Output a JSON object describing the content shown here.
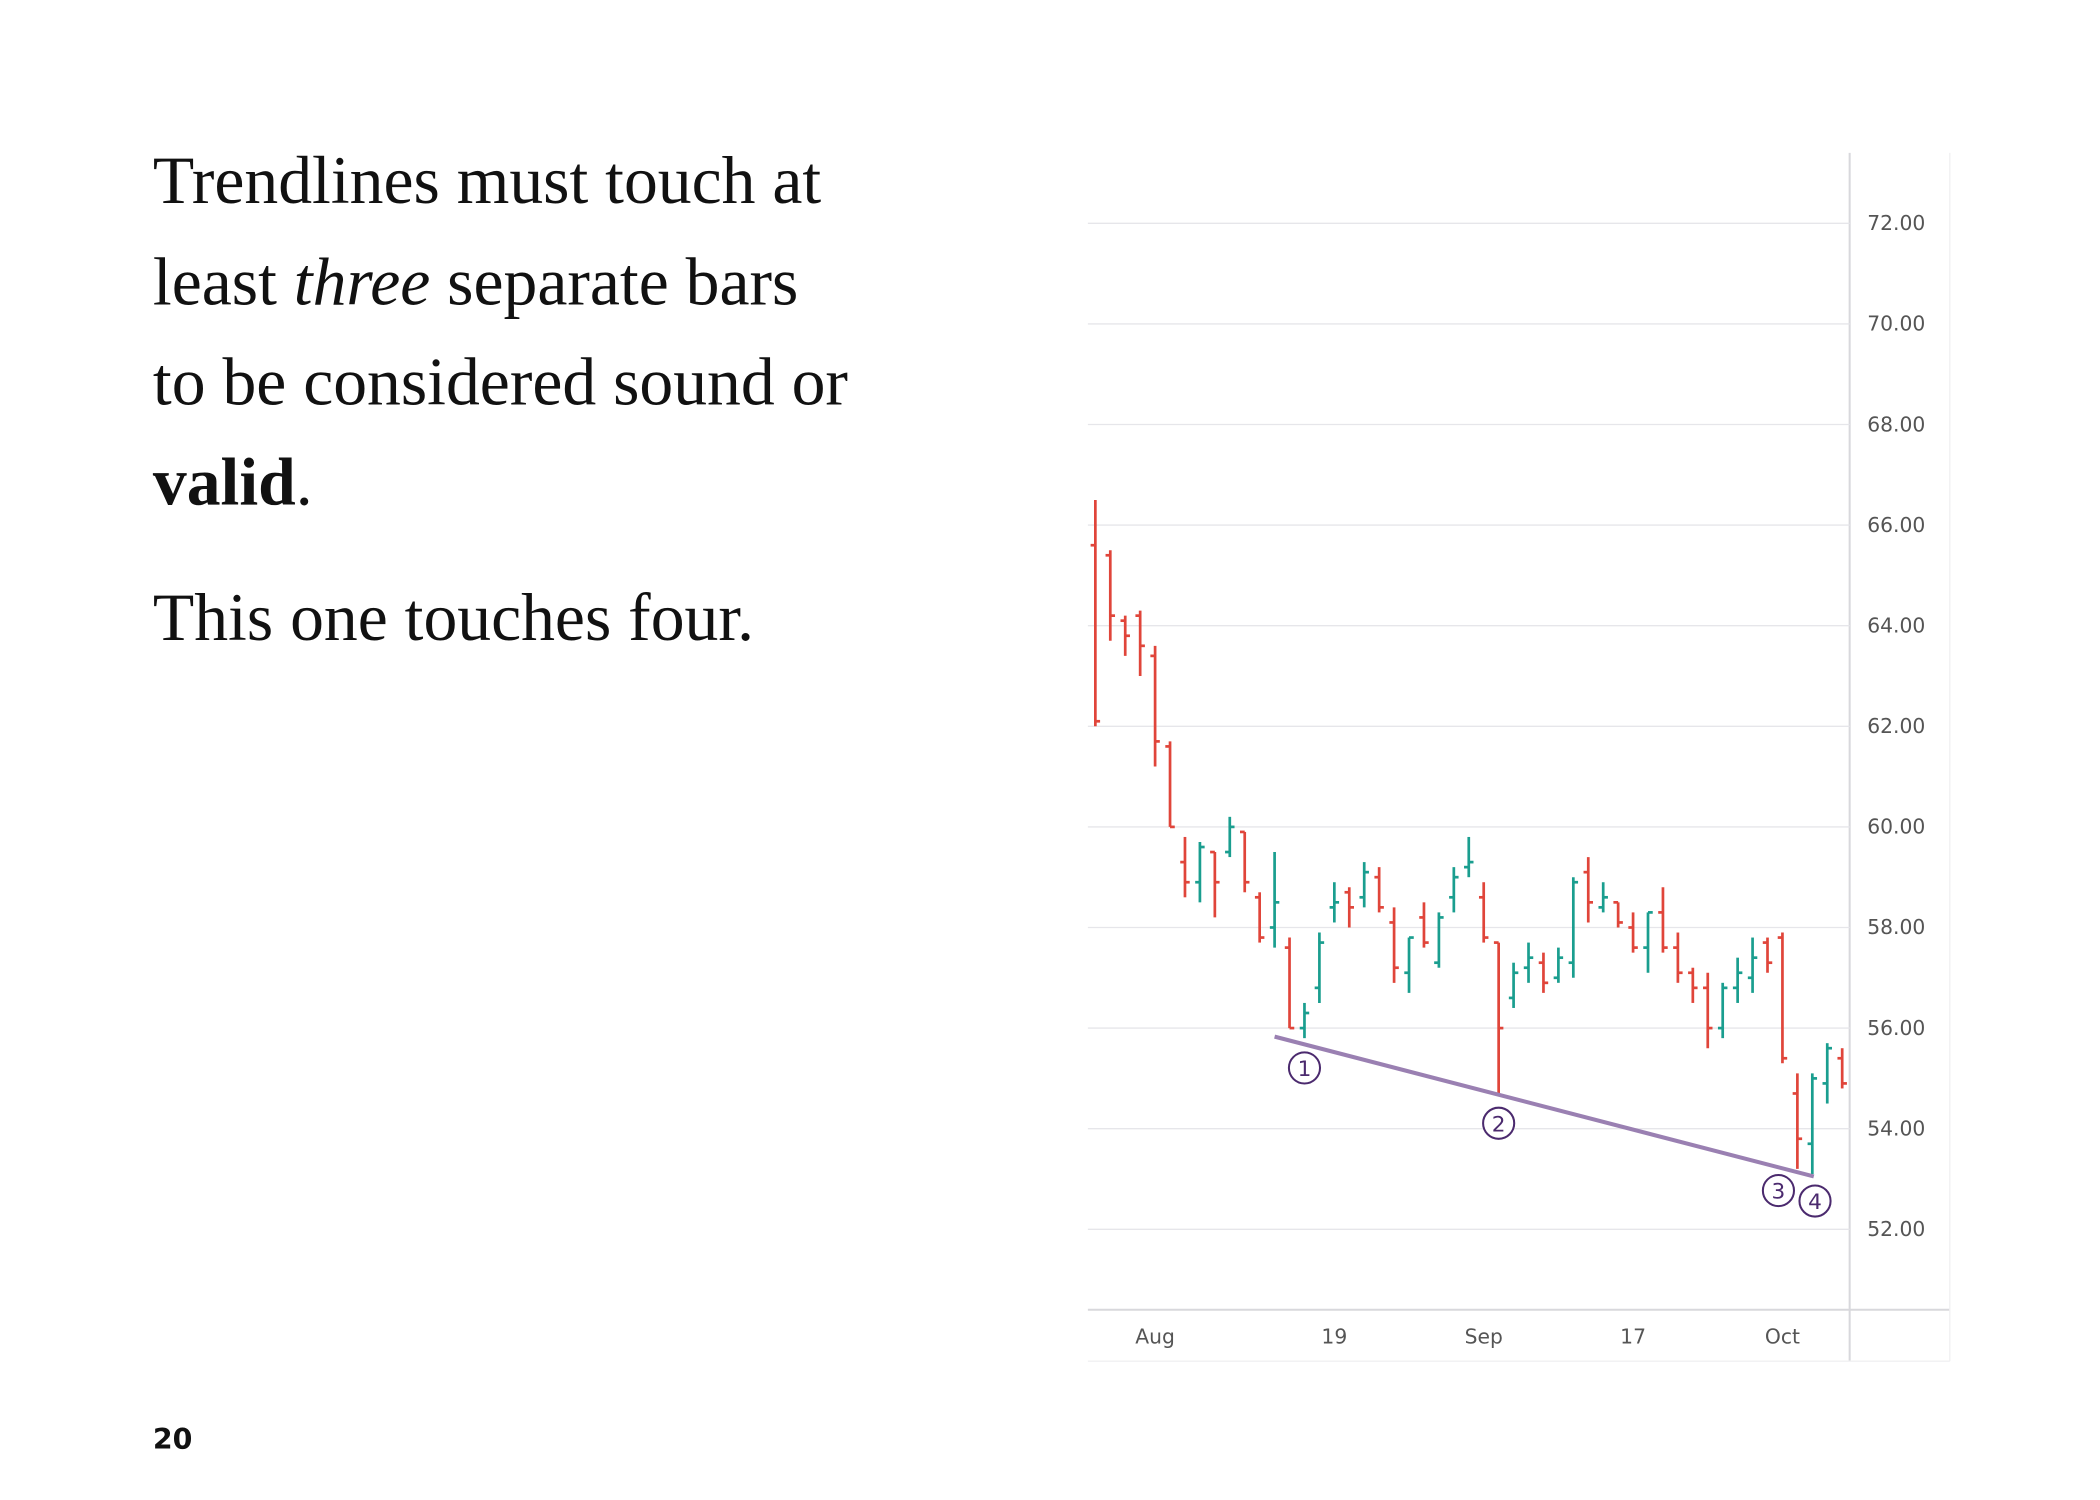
{
  "text": {
    "paragraph_1": [
      "Trendlines must touch at",
      "least ",
      "three",
      " separate bars",
      "to be considered sound or",
      "valid",
      "."
    ],
    "paragraph_2": "This one touches four."
  },
  "page_number": "20",
  "chart_data": {
    "type": "ohlc",
    "categories": [
      null,
      null,
      null,
      null,
      "Aug",
      null,
      null,
      null,
      null,
      null,
      null,
      null,
      null,
      null,
      null,
      null,
      "19",
      null,
      null,
      null,
      null,
      null,
      null,
      null,
      null,
      null,
      "Sep",
      null,
      null,
      null,
      null,
      null,
      null,
      null,
      null,
      null,
      "17",
      null,
      null,
      null,
      null,
      null,
      null,
      null,
      null,
      null,
      "Oct",
      null,
      null,
      null,
      null
    ],
    "open": [
      65.6,
      65.4,
      64.1,
      64.2,
      63.4,
      61.6,
      59.3,
      58.9,
      59.5,
      59.5,
      59.9,
      58.6,
      58.0,
      57.6,
      56.0,
      56.8,
      58.4,
      58.7,
      58.6,
      59.0,
      58.1,
      57.1,
      58.2,
      57.3,
      58.6,
      59.2,
      58.6,
      57.7,
      56.6,
      57.2,
      57.3,
      57.0,
      57.3,
      59.1,
      58.4,
      58.5,
      58.0,
      57.6,
      58.3,
      57.6,
      57.1,
      56.8,
      56.0,
      56.8,
      57.0,
      57.7,
      57.8,
      54.7,
      53.7,
      54.9,
      55.4
    ],
    "high": [
      66.5,
      65.5,
      64.2,
      64.3,
      63.6,
      61.7,
      59.8,
      59.7,
      59.5,
      60.2,
      59.9,
      58.7,
      59.5,
      57.8,
      56.5,
      57.9,
      58.9,
      58.8,
      59.3,
      59.2,
      58.4,
      57.8,
      58.5,
      58.3,
      59.2,
      59.8,
      58.9,
      57.7,
      57.3,
      57.7,
      57.5,
      57.6,
      59.0,
      59.4,
      58.9,
      58.5,
      58.3,
      58.3,
      58.8,
      57.9,
      57.2,
      57.1,
      56.9,
      57.4,
      57.8,
      57.8,
      57.9,
      55.1,
      55.1,
      55.7,
      55.6
    ],
    "low": [
      62.0,
      63.7,
      63.4,
      63.0,
      61.2,
      60.0,
      58.6,
      58.5,
      58.2,
      59.4,
      58.7,
      57.7,
      57.6,
      56.0,
      55.8,
      56.5,
      58.1,
      58.0,
      58.4,
      58.3,
      56.9,
      56.7,
      57.6,
      57.2,
      58.3,
      59.0,
      57.7,
      54.7,
      56.4,
      56.9,
      56.7,
      56.9,
      57.0,
      58.1,
      58.3,
      58.0,
      57.5,
      57.1,
      57.5,
      56.9,
      56.5,
      55.6,
      55.8,
      56.5,
      56.7,
      57.1,
      55.3,
      53.2,
      53.1,
      54.5,
      54.8
    ],
    "close": [
      62.1,
      64.2,
      63.8,
      63.6,
      61.7,
      60.0,
      58.9,
      59.6,
      58.9,
      60.0,
      58.9,
      57.8,
      58.5,
      56.0,
      56.3,
      57.7,
      58.5,
      58.4,
      59.1,
      58.4,
      57.2,
      57.8,
      57.7,
      58.2,
      59.0,
      59.3,
      57.8,
      56.0,
      57.1,
      57.4,
      56.9,
      57.4,
      58.9,
      58.5,
      58.6,
      58.1,
      57.6,
      58.3,
      57.6,
      57.1,
      56.8,
      56.0,
      56.8,
      57.1,
      57.4,
      57.3,
      55.4,
      53.8,
      55.0,
      55.6,
      54.9
    ],
    "up_color": "#1a9e8f",
    "down_color": "#e0453a",
    "ylim": [
      50.4,
      73.4
    ],
    "yticks": [
      {
        "value": 52,
        "label": "52.00"
      },
      {
        "value": 54,
        "label": "54.00"
      },
      {
        "value": 56,
        "label": "56.00"
      },
      {
        "value": 58,
        "label": "58.00"
      },
      {
        "value": 60,
        "label": "60.00"
      },
      {
        "value": 62,
        "label": "62.00"
      },
      {
        "value": 64,
        "label": "64.00"
      },
      {
        "value": 66,
        "label": "66.00"
      },
      {
        "value": 68,
        "label": "68.00"
      },
      {
        "value": 70,
        "label": "70.00"
      },
      {
        "value": 72,
        "label": "72.00"
      }
    ],
    "grid": true,
    "y_axis_side": "right",
    "trendline": {
      "x": [
        12.5,
        48.6
      ],
      "y": [
        55.83,
        53.05
      ],
      "color": "#9a80b2"
    },
    "annotations": [
      {
        "label": "1",
        "bar": 14
      },
      {
        "label": "2",
        "bar": 27
      },
      {
        "label": "3",
        "bar": 47
      },
      {
        "label": "4",
        "bar": 48
      }
    ]
  }
}
